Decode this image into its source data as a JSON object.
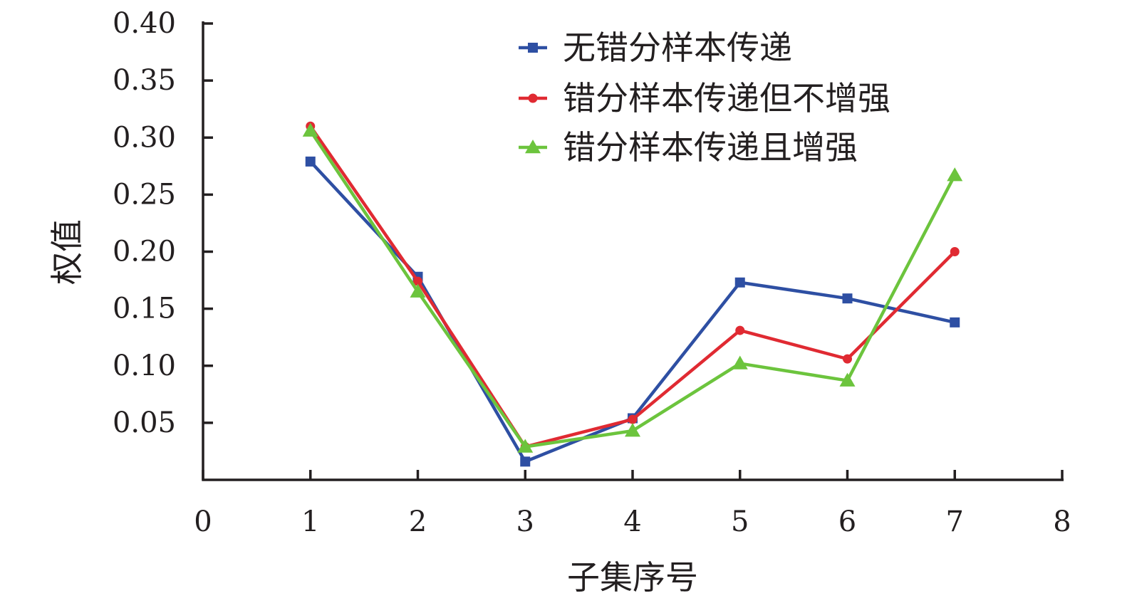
{
  "chart_data": {
    "type": "line",
    "xlabel": "子集序号",
    "ylabel": "权值",
    "xlim": [
      0,
      8
    ],
    "ylim": [
      0,
      0.4
    ],
    "x_ticks": [
      "0",
      "1",
      "2",
      "3",
      "4",
      "5",
      "6",
      "7",
      "8"
    ],
    "y_ticks": [
      "0.05",
      "0.10",
      "0.15",
      "0.20",
      "0.25",
      "0.30",
      "0.35",
      "0.40"
    ],
    "x": [
      1,
      2,
      3,
      4,
      5,
      6,
      7
    ],
    "legend_position": "top-right",
    "grid": false,
    "series": [
      {
        "name": "无错分样本传递",
        "color": "#2e4fa3",
        "marker": "square",
        "values": [
          0.279,
          0.178,
          0.016,
          0.054,
          0.173,
          0.159,
          0.138
        ]
      },
      {
        "name": "错分样本传递但不增强",
        "color": "#e02a32",
        "marker": "circle",
        "values": [
          0.31,
          0.174,
          0.029,
          0.053,
          0.131,
          0.106,
          0.2
        ]
      },
      {
        "name": "错分样本传递且增强",
        "color": "#6cc43d",
        "marker": "triangle",
        "values": [
          0.306,
          0.165,
          0.029,
          0.043,
          0.102,
          0.087,
          0.267
        ]
      }
    ]
  }
}
